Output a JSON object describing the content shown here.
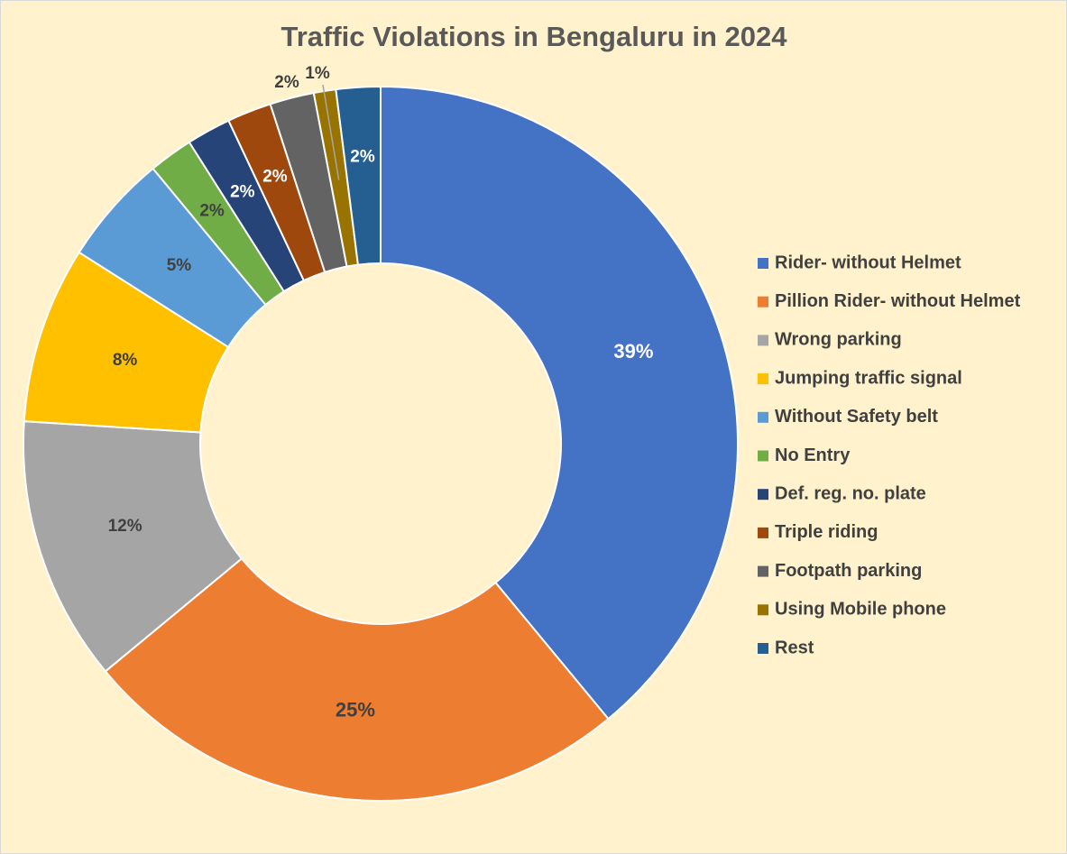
{
  "chart_data": {
    "type": "pie",
    "title": "Traffic Violations in Bengaluru in 2024",
    "categories": [
      "Rider- without Helmet",
      "Pillion Rider- without Helmet",
      "Wrong parking",
      "Jumping traffic signal",
      "Without Safety belt",
      "No Entry",
      "Def. reg. no. plate",
      "Triple riding",
      "Footpath parking",
      "Using Mobile phone",
      "Rest"
    ],
    "values": [
      39,
      25,
      12,
      8,
      5,
      2,
      2,
      2,
      2,
      1,
      2
    ],
    "value_labels": [
      "39%",
      "25%",
      "12%",
      "8%",
      "5%",
      "2%",
      "2%",
      "2%",
      "2%",
      "1%",
      "2%"
    ],
    "colors": [
      "#4472c4",
      "#ed7d31",
      "#a5a5a5",
      "#ffc000",
      "#5b9bd5",
      "#70ad47",
      "#264478",
      "#9e480e",
      "#636363",
      "#997300",
      "#255e91"
    ],
    "legend": "right"
  }
}
